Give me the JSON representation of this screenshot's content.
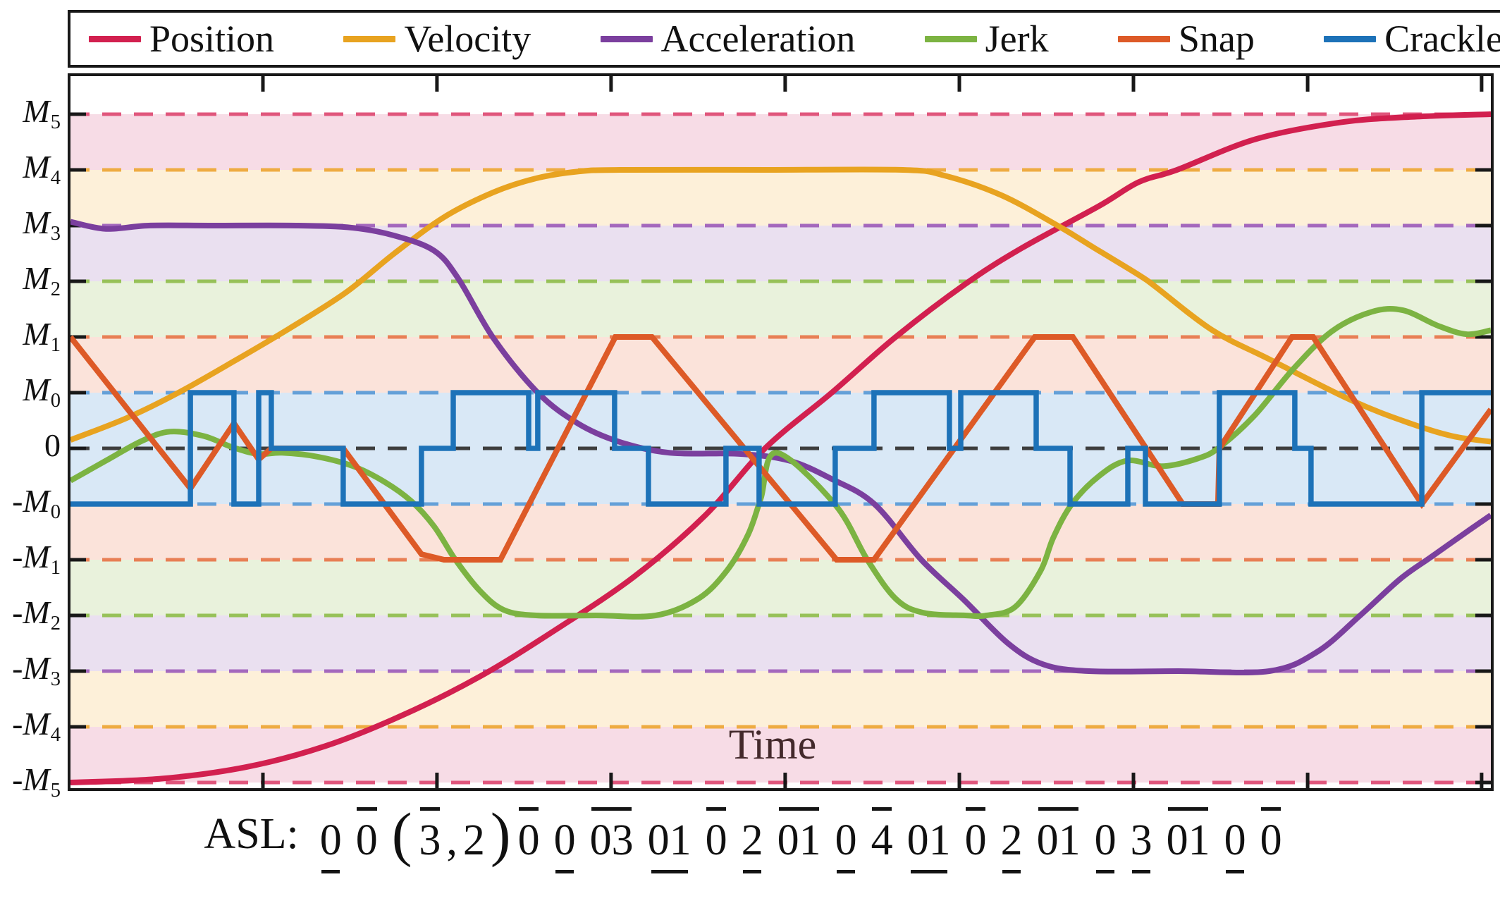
{
  "legend": {
    "items": [
      {
        "label": "Position",
        "color": "#d2204f"
      },
      {
        "label": "Velocity",
        "color": "#e8a320"
      },
      {
        "label": "Acceleration",
        "color": "#7b3f9e"
      },
      {
        "label": "Jerk",
        "color": "#7cb342"
      },
      {
        "label": "Snap",
        "color": "#dd5a27"
      },
      {
        "label": "Crackle",
        "color": "#1d72b8"
      }
    ]
  },
  "y_axis": {
    "labels": [
      {
        "sign": "",
        "base": "M",
        "sub": "5",
        "u": 6
      },
      {
        "sign": "",
        "base": "M",
        "sub": "4",
        "u": 5
      },
      {
        "sign": "",
        "base": "M",
        "sub": "3",
        "u": 4
      },
      {
        "sign": "",
        "base": "M",
        "sub": "2",
        "u": 3
      },
      {
        "sign": "",
        "base": "M",
        "sub": "1",
        "u": 2
      },
      {
        "sign": "",
        "base": "M",
        "sub": "0",
        "u": 1
      },
      {
        "sign": "",
        "base": "0",
        "sub": "",
        "u": 0
      },
      {
        "sign": "-",
        "base": "M",
        "sub": "0",
        "u": -1
      },
      {
        "sign": "-",
        "base": "M",
        "sub": "1",
        "u": -2
      },
      {
        "sign": "-",
        "base": "M",
        "sub": "2",
        "u": -3
      },
      {
        "sign": "-",
        "base": "M",
        "sub": "3",
        "u": -4
      },
      {
        "sign": "-",
        "base": "M",
        "sub": "4",
        "u": -5
      },
      {
        "sign": "-",
        "base": "M",
        "sub": "5",
        "u": -6
      }
    ]
  },
  "x_axis": {
    "label": "Time",
    "label_color": "#43292b"
  },
  "asl": {
    "prefix": "ASL:",
    "tokens": [
      {
        "text": "0",
        "mark": "under"
      },
      {
        "text": "0",
        "mark": "over"
      },
      {
        "text": "(",
        "mark": "paren"
      },
      {
        "text": "3",
        "mark": "over",
        "tight": true
      },
      {
        "text": ",",
        "mark": "plain",
        "tight": true
      },
      {
        "text": "2",
        "mark": "plain",
        "tight": true
      },
      {
        "text": ")",
        "mark": "paren"
      },
      {
        "text": "0",
        "mark": "over"
      },
      {
        "text": "0",
        "mark": "under"
      },
      {
        "text": "03",
        "mark": "over"
      },
      {
        "text": "01",
        "mark": "under"
      },
      {
        "text": "0",
        "mark": "over"
      },
      {
        "text": "2",
        "mark": "under"
      },
      {
        "text": "01",
        "mark": "over"
      },
      {
        "text": "0",
        "mark": "under"
      },
      {
        "text": "4",
        "mark": "over"
      },
      {
        "text": "01",
        "mark": "under"
      },
      {
        "text": "0",
        "mark": "over"
      },
      {
        "text": "2",
        "mark": "under"
      },
      {
        "text": "01",
        "mark": "over"
      },
      {
        "text": "0",
        "mark": "under"
      },
      {
        "text": "3",
        "mark": "under"
      },
      {
        "text": "01",
        "mark": "over"
      },
      {
        "text": "0",
        "mark": "under"
      },
      {
        "text": "0",
        "mark": "over"
      }
    ]
  },
  "chart_data": {
    "type": "line",
    "xlabel": "Time",
    "x_range_note": "x normalized 0..1 over the full time axis; y in level units where M0=1, M1=2, M2=3, M3=4, M4=5, M5=6",
    "ylim": [
      -6.45,
      6.45
    ],
    "y_levels": [
      "M5",
      "M4",
      "M3",
      "M2",
      "M1",
      "M0",
      "0",
      "-M0",
      "-M1",
      "-M2",
      "-M3",
      "-M4",
      "-M5"
    ],
    "y_level_values": [
      6,
      5,
      4,
      3,
      2,
      1,
      0,
      -1,
      -2,
      -3,
      -4,
      -5,
      -6
    ],
    "x_ticks": [
      0.1355,
      0.258,
      0.3806,
      0.5032,
      0.6258,
      0.7484,
      0.871,
      0.9935
    ],
    "bands": [
      {
        "top": 6,
        "bottom": 5,
        "color": "#f7dce6"
      },
      {
        "top": 5,
        "bottom": 4,
        "color": "#fdf0d9"
      },
      {
        "top": 4,
        "bottom": 3,
        "color": "#eae0f0"
      },
      {
        "top": 3,
        "bottom": 2,
        "color": "#e9f2dc"
      },
      {
        "top": 2,
        "bottom": 1,
        "color": "#fbe3da"
      },
      {
        "top": 1,
        "bottom": -1,
        "color": "#d9e8f6"
      },
      {
        "top": -1,
        "bottom": -2,
        "color": "#fbe3da"
      },
      {
        "top": -2,
        "bottom": -3,
        "color": "#e9f2dc"
      },
      {
        "top": -3,
        "bottom": -4,
        "color": "#eae0f0"
      },
      {
        "top": -4,
        "bottom": -5,
        "color": "#fdf0d9"
      },
      {
        "top": -5,
        "bottom": -6,
        "color": "#f7dce6"
      }
    ],
    "gridlines": [
      {
        "u": 6,
        "color": "#e0567c"
      },
      {
        "u": 5,
        "color": "#eeab42"
      },
      {
        "u": 4,
        "color": "#a468bd"
      },
      {
        "u": 3,
        "color": "#97c159"
      },
      {
        "u": 2,
        "color": "#e87f55"
      },
      {
        "u": 1,
        "color": "#64a0d8"
      },
      {
        "u": 0,
        "color": "#3d3d3d"
      },
      {
        "u": -1,
        "color": "#64a0d8"
      },
      {
        "u": -2,
        "color": "#e87f55"
      },
      {
        "u": -3,
        "color": "#97c159"
      },
      {
        "u": -4,
        "color": "#a468bd"
      },
      {
        "u": -5,
        "color": "#eeab42"
      },
      {
        "u": -6,
        "color": "#e0567c"
      }
    ],
    "series": [
      {
        "name": "Position",
        "color": "#d2204f",
        "shape": "smooth",
        "width": 8,
        "points": [
          [
            0,
            -6
          ],
          [
            0.064,
            -5.93
          ],
          [
            0.124,
            -5.72
          ],
          [
            0.179,
            -5.35
          ],
          [
            0.233,
            -4.8
          ],
          [
            0.288,
            -4.1
          ],
          [
            0.342,
            -3.25
          ],
          [
            0.397,
            -2.3
          ],
          [
            0.447,
            -1.2
          ],
          [
            0.489,
            0
          ],
          [
            0.536,
            1.0
          ],
          [
            0.581,
            2.0
          ],
          [
            0.63,
            2.95
          ],
          [
            0.67,
            3.6
          ],
          [
            0.724,
            4.35
          ],
          [
            0.752,
            4.78
          ],
          [
            0.779,
            5.0
          ],
          [
            0.834,
            5.55
          ],
          [
            0.893,
            5.85
          ],
          [
            0.943,
            5.95
          ],
          [
            1,
            6.0
          ]
        ]
      },
      {
        "name": "Velocity",
        "color": "#e8a320",
        "shape": "smooth",
        "width": 8,
        "points": [
          [
            0,
            0.15
          ],
          [
            0.04,
            0.55
          ],
          [
            0.076,
            1.0
          ],
          [
            0.114,
            1.55
          ],
          [
            0.154,
            2.15
          ],
          [
            0.194,
            2.8
          ],
          [
            0.228,
            3.5
          ],
          [
            0.263,
            4.15
          ],
          [
            0.298,
            4.6
          ],
          [
            0.328,
            4.85
          ],
          [
            0.357,
            4.97
          ],
          [
            0.387,
            5.0
          ],
          [
            0.49,
            5.0
          ],
          [
            0.586,
            5.0
          ],
          [
            0.615,
            4.9
          ],
          [
            0.655,
            4.55
          ],
          [
            0.695,
            4.0
          ],
          [
            0.724,
            3.55
          ],
          [
            0.753,
            3.1
          ],
          [
            0.764,
            2.9
          ],
          [
            0.804,
            2.12
          ],
          [
            0.844,
            1.6
          ],
          [
            0.903,
            0.85
          ],
          [
            0.943,
            0.45
          ],
          [
            0.973,
            0.22
          ],
          [
            1,
            0.12
          ]
        ]
      },
      {
        "name": "Acceleration",
        "color": "#7b3f9e",
        "shape": "smooth",
        "width": 8,
        "points": [
          [
            0,
            4.07
          ],
          [
            0.025,
            3.94
          ],
          [
            0.055,
            4.0
          ],
          [
            0.099,
            4.0
          ],
          [
            0.159,
            4.0
          ],
          [
            0.199,
            3.96
          ],
          [
            0.228,
            3.82
          ],
          [
            0.256,
            3.55
          ],
          [
            0.273,
            3.05
          ],
          [
            0.298,
            1.97
          ],
          [
            0.329,
            1.0
          ],
          [
            0.357,
            0.45
          ],
          [
            0.386,
            0.12
          ],
          [
            0.422,
            -0.08
          ],
          [
            0.471,
            -0.1
          ],
          [
            0.506,
            -0.22
          ],
          [
            0.536,
            -0.55
          ],
          [
            0.566,
            -1.0
          ],
          [
            0.599,
            -2.0
          ],
          [
            0.629,
            -2.72
          ],
          [
            0.66,
            -3.5
          ],
          [
            0.685,
            -3.88
          ],
          [
            0.717,
            -4.0
          ],
          [
            0.78,
            -4.0
          ],
          [
            0.844,
            -4.0
          ],
          [
            0.878,
            -3.65
          ],
          [
            0.908,
            -3.0
          ],
          [
            0.936,
            -2.35
          ],
          [
            0.958,
            -1.95
          ],
          [
            0.983,
            -1.5
          ],
          [
            1,
            -1.2
          ]
        ]
      },
      {
        "name": "Jerk",
        "color": "#7cb342",
        "shape": "smooth",
        "width": 8,
        "points": [
          [
            0,
            -0.58
          ],
          [
            0.025,
            -0.22
          ],
          [
            0.05,
            0.13
          ],
          [
            0.07,
            0.3
          ],
          [
            0.094,
            0.22
          ],
          [
            0.114,
            0.02
          ],
          [
            0.132,
            -0.1
          ],
          [
            0.149,
            -0.08
          ],
          [
            0.174,
            -0.15
          ],
          [
            0.199,
            -0.32
          ],
          [
            0.221,
            -0.6
          ],
          [
            0.24,
            -0.95
          ],
          [
            0.256,
            -1.4
          ],
          [
            0.271,
            -2.0
          ],
          [
            0.288,
            -2.55
          ],
          [
            0.305,
            -2.9
          ],
          [
            0.328,
            -3.0
          ],
          [
            0.37,
            -3.0
          ],
          [
            0.412,
            -3.0
          ],
          [
            0.442,
            -2.7
          ],
          [
            0.462,
            -2.2
          ],
          [
            0.477,
            -1.55
          ],
          [
            0.486,
            -0.9
          ],
          [
            0.497,
            -0.08
          ],
          [
            0.538,
            -1.0
          ],
          [
            0.561,
            -2.0
          ],
          [
            0.581,
            -2.7
          ],
          [
            0.6,
            -2.95
          ],
          [
            0.63,
            -3.0
          ],
          [
            0.645,
            -3.0
          ],
          [
            0.665,
            -2.85
          ],
          [
            0.683,
            -2.2
          ],
          [
            0.692,
            -1.6
          ],
          [
            0.705,
            -1.0
          ],
          [
            0.724,
            -0.5
          ],
          [
            0.744,
            -0.22
          ],
          [
            0.769,
            -0.32
          ],
          [
            0.794,
            -0.18
          ],
          [
            0.809,
            0.02
          ],
          [
            0.834,
            0.6
          ],
          [
            0.86,
            1.4
          ],
          [
            0.888,
            2.1
          ],
          [
            0.916,
            2.45
          ],
          [
            0.938,
            2.48
          ],
          [
            0.963,
            2.2
          ],
          [
            0.983,
            2.05
          ],
          [
            1,
            2.12
          ]
        ]
      },
      {
        "name": "Snap",
        "color": "#dd5a27",
        "shape": "linear",
        "width": 8,
        "points": [
          [
            0,
            2
          ],
          [
            0.0844,
            -0.72
          ],
          [
            0.1151,
            0.45
          ],
          [
            0.1325,
            -0.2
          ],
          [
            0.1414,
            0
          ],
          [
            0.192,
            0
          ],
          [
            0.2471,
            -1.9
          ],
          [
            0.263,
            -2
          ],
          [
            0.3027,
            -2
          ],
          [
            0.3836,
            2
          ],
          [
            0.4094,
            2
          ],
          [
            0.5394,
            -2
          ],
          [
            0.5657,
            -2
          ],
          [
            0.6789,
            2
          ],
          [
            0.7057,
            2
          ],
          [
            0.7573,
            0
          ],
          [
            0.7831,
            -1
          ],
          [
            0.8079,
            -1
          ],
          [
            0.8089,
            0
          ],
          [
            0.86,
            2
          ],
          [
            0.8749,
            2
          ],
          [
            0.9514,
            -1
          ],
          [
            1,
            0.7
          ]
        ]
      },
      {
        "name": "Crackle",
        "color": "#1d72b8",
        "shape": "step",
        "width": 7.5,
        "points": [
          [
            0,
            -1
          ],
          [
            0.0844,
            1
          ],
          [
            0.1151,
            -1
          ],
          [
            0.1325,
            1
          ],
          [
            0.1414,
            0
          ],
          [
            0.192,
            -1
          ],
          [
            0.2471,
            0
          ],
          [
            0.2695,
            1
          ],
          [
            0.3226,
            0
          ],
          [
            0.329,
            1
          ],
          [
            0.3831,
            0
          ],
          [
            0.4069,
            -1
          ],
          [
            0.4615,
            0
          ],
          [
            0.4848,
            -1
          ],
          [
            0.5384,
            0
          ],
          [
            0.5657,
            1
          ],
          [
            0.6188,
            0
          ],
          [
            0.6268,
            1
          ],
          [
            0.6799,
            0
          ],
          [
            0.7037,
            -1
          ],
          [
            0.7444,
            0
          ],
          [
            0.7568,
            -1
          ],
          [
            0.8089,
            1
          ],
          [
            0.862,
            0
          ],
          [
            0.8734,
            -1
          ],
          [
            0.9514,
            1
          ]
        ]
      }
    ],
    "legend_position": "top",
    "grid": "dashed-horizontal-only"
  },
  "style": {
    "frame_color": "#181818",
    "tick_color": "#181818",
    "bar_color": "#141414"
  }
}
